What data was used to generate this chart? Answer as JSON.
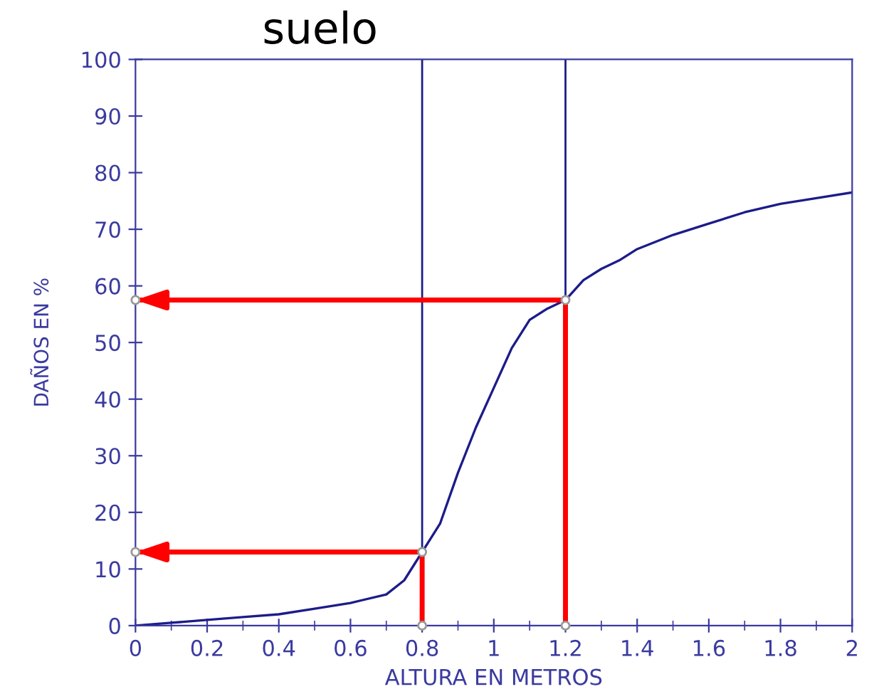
{
  "chart_data": {
    "type": "line",
    "title": "suelo",
    "xlabel": "ALTURA EN METROS",
    "ylabel": "DAÑOS EN %",
    "xlim": [
      0,
      2
    ],
    "ylim": [
      0,
      100
    ],
    "xticks": [
      0,
      0.2,
      0.4,
      0.6,
      0.8,
      1,
      1.2,
      1.4,
      1.6,
      1.8,
      2
    ],
    "yticks": [
      0,
      10,
      20,
      30,
      40,
      50,
      60,
      70,
      80,
      90,
      100
    ],
    "grid": false,
    "legend": false,
    "line_style": "solid",
    "ref_lines": [
      {
        "axis": "x",
        "value": 0.8,
        "color": "#1c1c8a"
      },
      {
        "axis": "x",
        "value": 1.2,
        "color": "#1c1c8a"
      }
    ],
    "series": [
      {
        "color": "#1c1c8a",
        "x": [
          0,
          0.1,
          0.2,
          0.3,
          0.4,
          0.5,
          0.6,
          0.7,
          0.75,
          0.8,
          0.85,
          0.9,
          0.95,
          1.0,
          1.05,
          1.1,
          1.15,
          1.2,
          1.25,
          1.3,
          1.35,
          1.4,
          1.5,
          1.6,
          1.7,
          1.8,
          1.9,
          2.0
        ],
        "values": [
          0,
          0.5,
          1,
          1.5,
          2,
          3,
          4,
          5.5,
          8,
          13,
          18,
          27,
          35,
          42,
          49,
          54,
          56,
          57.5,
          61,
          63,
          64.5,
          66.5,
          69,
          71,
          73,
          74.5,
          75.5,
          76.5
        ]
      },
      {
        "type": "line",
        "marker": "circle",
        "color": "#ff0000",
        "x": [
          0.8,
          0.8,
          0
        ],
        "values": [
          0,
          13,
          13
        ]
      },
      {
        "type": "line",
        "marker": "circle",
        "color": "#ff0000",
        "x": [
          1.2,
          1.2,
          0
        ],
        "values": [
          0,
          57.5,
          57.5
        ]
      }
    ]
  }
}
